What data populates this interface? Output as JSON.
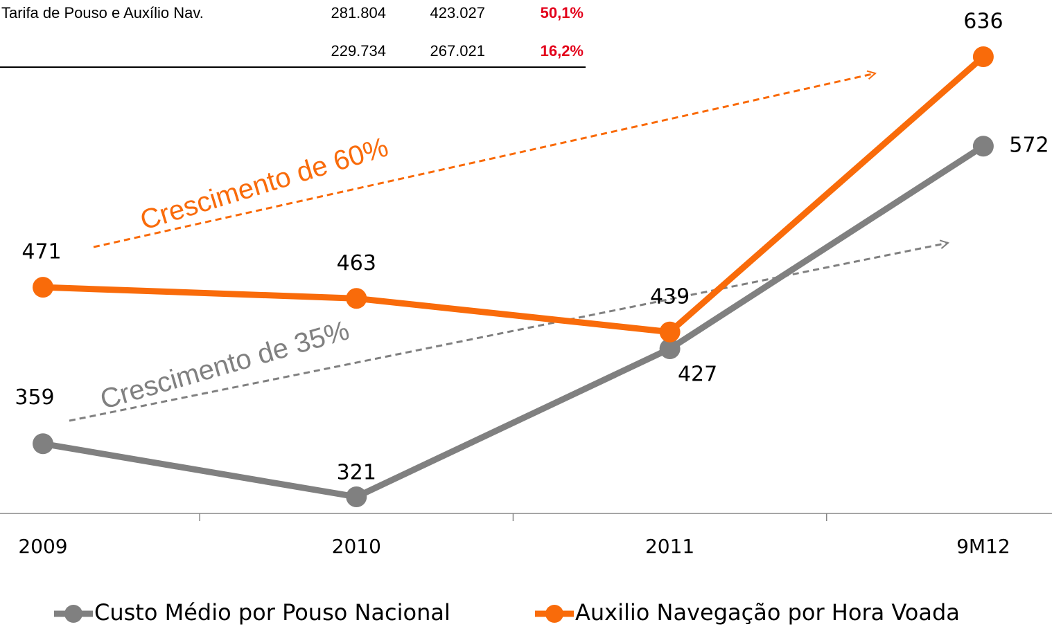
{
  "table": {
    "rows": [
      {
        "label": "Tarifa de Pouso e Auxílio Nav.",
        "cells": [
          "281.804",
          "423.027",
          "50,1%"
        ]
      },
      {
        "cells": [
          "229.734",
          "267.021",
          "16,2%"
        ]
      }
    ]
  },
  "chart_data": {
    "type": "line",
    "categories": [
      "2009",
      "2010",
      "2011",
      "9M12"
    ],
    "series": [
      {
        "name": "Custo Médio por Pouso Nacional",
        "color": "#808080",
        "values": [
          359,
          321,
          427,
          572
        ]
      },
      {
        "name": "Auxilio Navegação por Hora Voada",
        "color": "#f96b0a",
        "values": [
          471,
          463,
          439,
          636
        ]
      }
    ],
    "annotations": [
      "Crescimento de 60%",
      "Crescimento de 35%"
    ]
  }
}
